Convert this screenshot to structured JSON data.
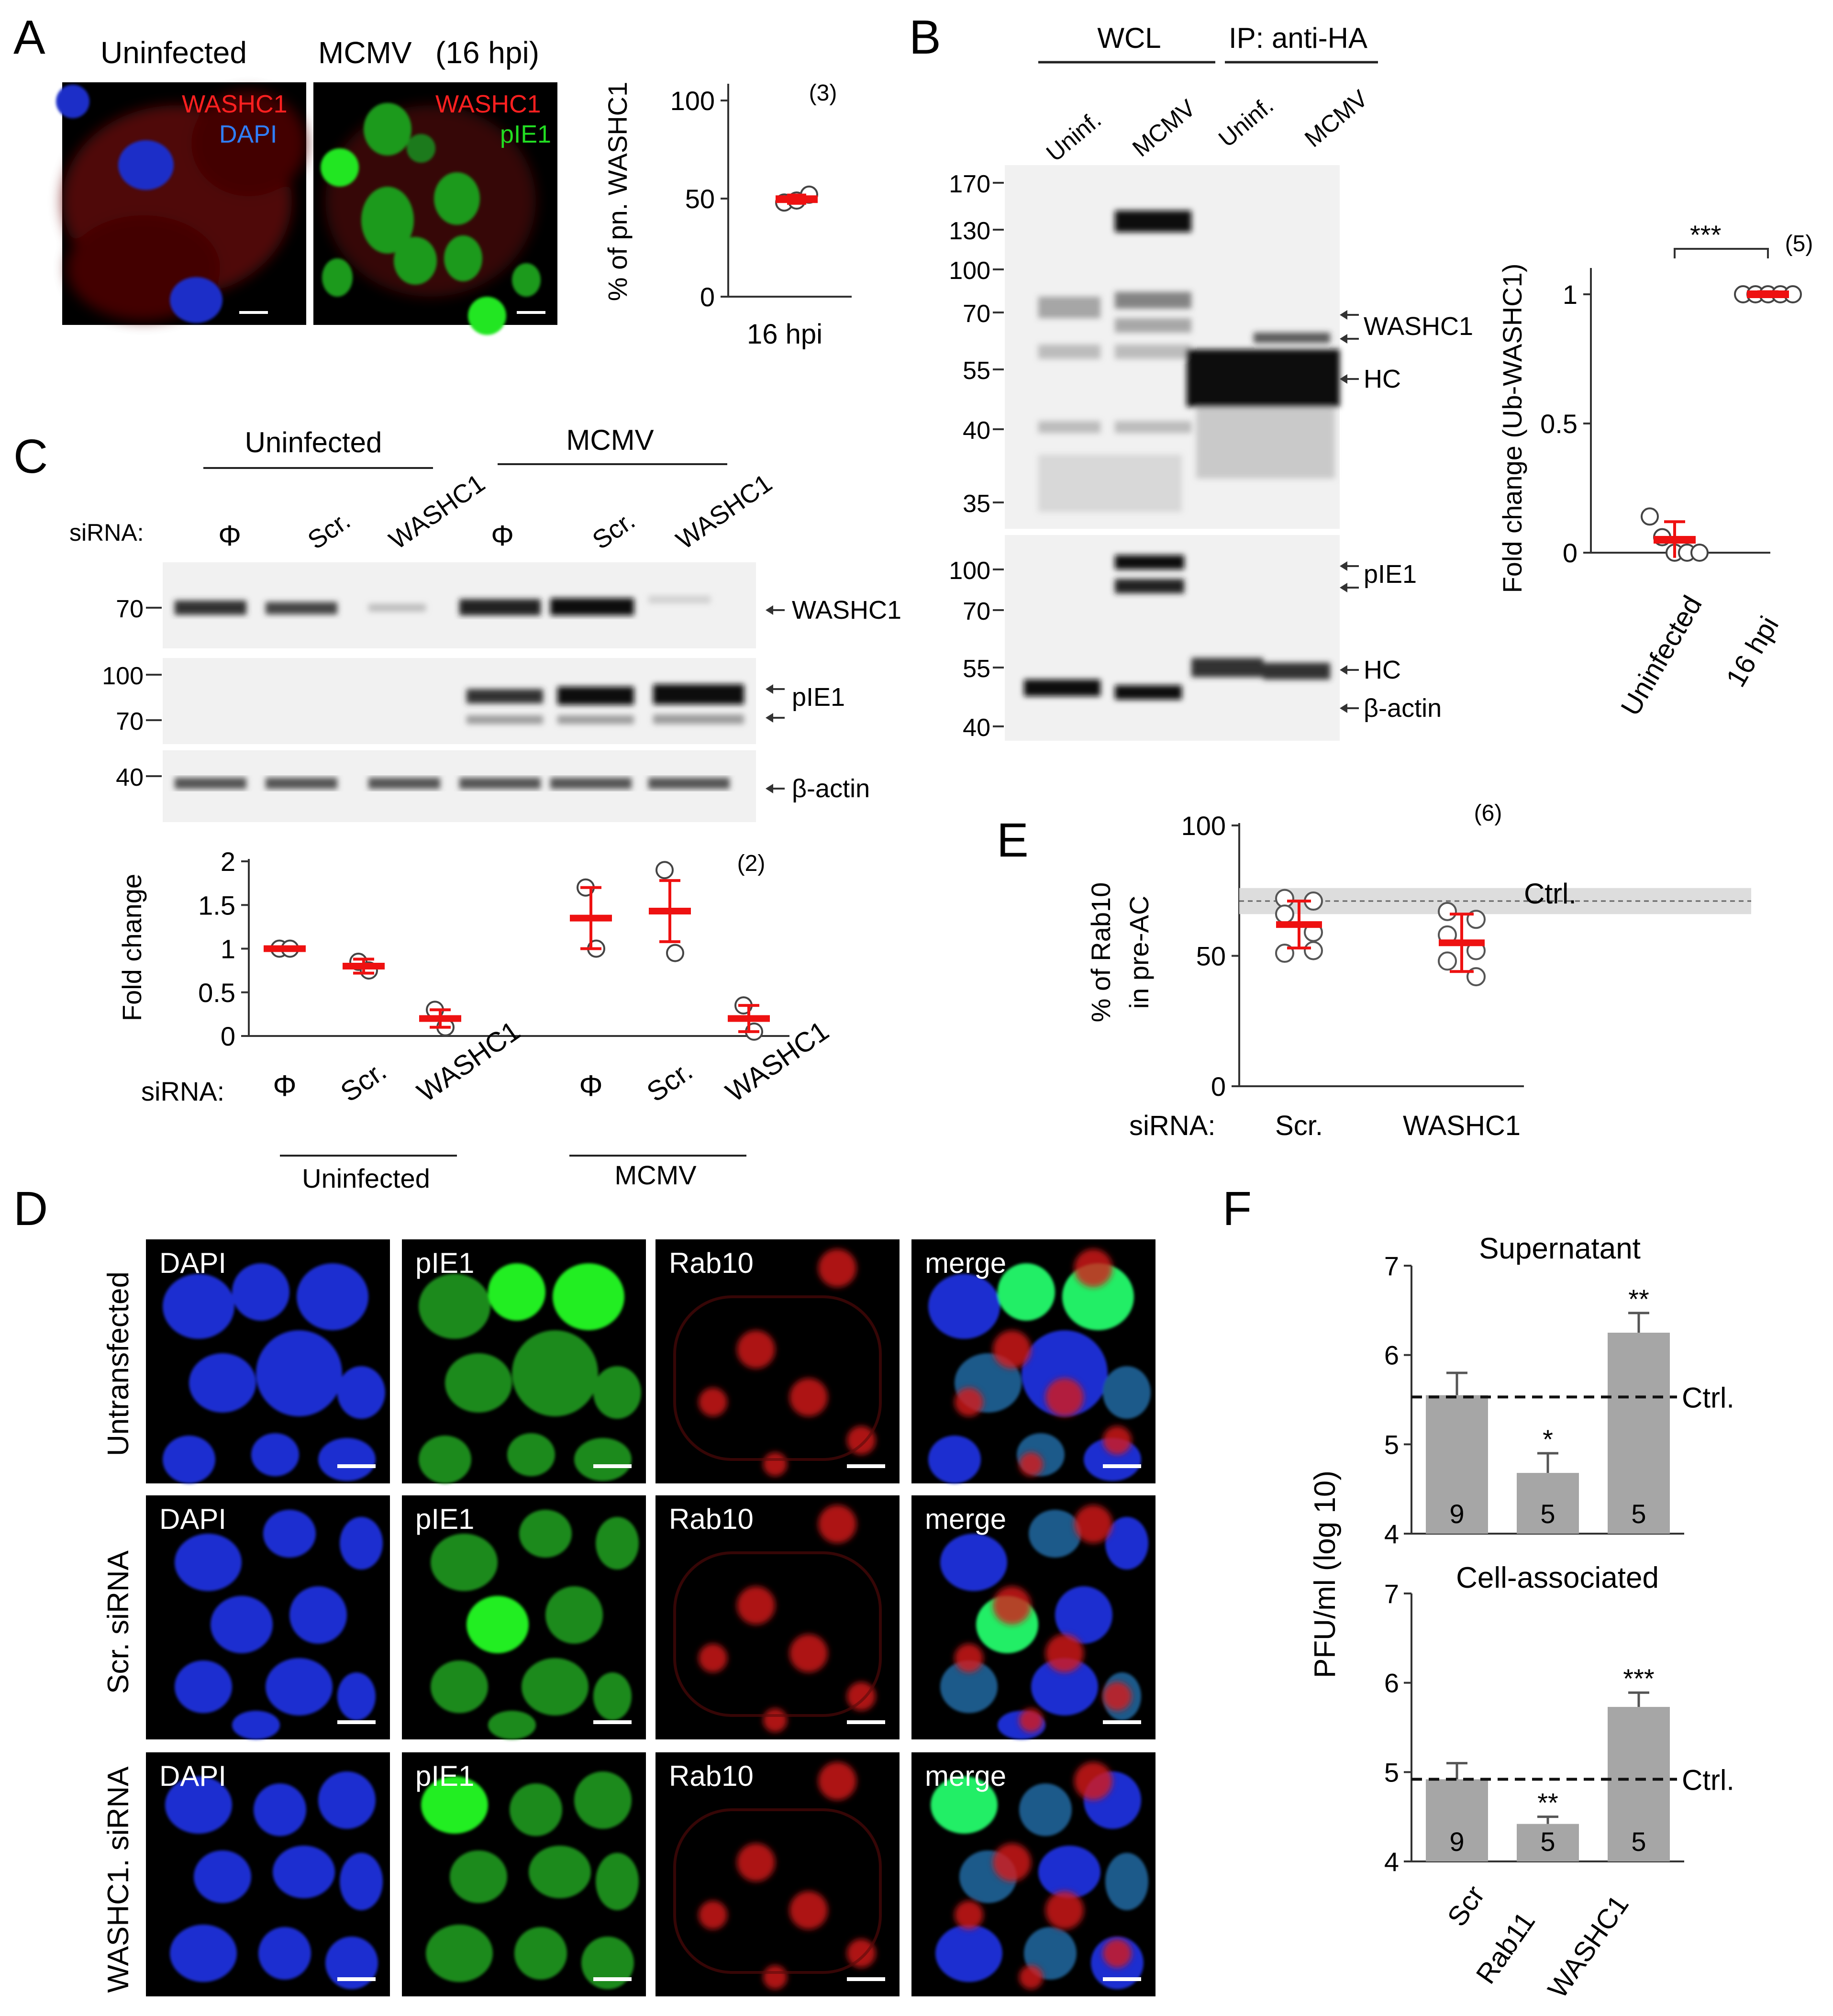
{
  "panel_letters": [
    "A",
    "B",
    "C",
    "D",
    "E",
    "F"
  ],
  "panel_a": {
    "col1_title": "Uninfected",
    "col2_title": "MCMV",
    "col2_sub": "(16 hpi)",
    "img1_labels": [
      "WASHC1",
      "DAPI"
    ],
    "img2_labels": [
      "WASHC1",
      "pIE1"
    ],
    "img1_label_colors": [
      "#ff2020",
      "#2f7fff"
    ],
    "img2_label_colors": [
      "#ff2020",
      "#22dd22"
    ],
    "chart": {
      "type": "scatter",
      "ylabel": "% of pn. WASHC1",
      "yticks": [
        "0",
        "50",
        "100"
      ],
      "ylim": [
        0,
        100
      ],
      "xtick": "16 hpi",
      "n_label": "(3)",
      "points": [
        48,
        49,
        52
      ],
      "mean": 49.7,
      "sd": 2.1
    }
  },
  "panel_b": {
    "header_groups": [
      "WCL",
      "IP: anti-HA"
    ],
    "lanes": [
      "Uninf.",
      "MCMV",
      "Uninf.",
      "MCMV"
    ],
    "top_mw": [
      "170",
      "130",
      "100",
      "70",
      "55",
      "40",
      "35"
    ],
    "bottom_mw": [
      "100",
      "70",
      "55",
      "40"
    ],
    "top_arrows": [
      "WASHC1",
      "WASHC1",
      "HC"
    ],
    "bottom_arrows": [
      "pIE1",
      "pIE1",
      "HC",
      "β-actin"
    ],
    "chart": {
      "type": "scatter",
      "ylabel": "Fold change (Ub-WASHC1)",
      "yticks": [
        "0",
        "0.5",
        "1"
      ],
      "ylim": [
        0,
        1.1
      ],
      "categories": [
        "Uninfected",
        "16 hpi"
      ],
      "n_label": "(5)",
      "sig": "***",
      "points": [
        [
          0.14,
          0.06,
          0.0,
          0.0,
          0.0
        ],
        [
          1.0,
          1.0,
          1.0,
          1.0,
          1.0
        ]
      ],
      "means": [
        0.05,
        1.0
      ],
      "sds": [
        0.07,
        0.01
      ]
    }
  },
  "panel_c": {
    "group_titles": [
      "Uninfected",
      "MCMV"
    ],
    "sirna_label": "siRNA:",
    "lanes": [
      "Φ",
      "Scr.",
      "WASHC1",
      "Φ",
      "Scr.",
      "WASHC1"
    ],
    "blot_mw": [
      [
        "70"
      ],
      [
        "100",
        "70"
      ],
      [
        "40"
      ]
    ],
    "blot_labels": [
      "WASHC1",
      "pIE1",
      "β-actin"
    ],
    "chart": {
      "type": "scatter",
      "ylabel": "Fold change",
      "yticks": [
        "0",
        "0.5",
        "1",
        "1.5",
        "2"
      ],
      "ylim": [
        0,
        2
      ],
      "categories": [
        "Φ",
        "Scr.",
        "WASHC1",
        "Φ",
        "Scr.",
        "WASHC1"
      ],
      "group_labels": [
        "Uninfected",
        "MCMV"
      ],
      "n_label": "(2)",
      "sirna_label": "siRNA:",
      "points": [
        [
          1.0,
          1.0
        ],
        [
          0.85,
          0.75
        ],
        [
          0.3,
          0.1
        ],
        [
          1.7,
          1.0
        ],
        [
          1.9,
          0.95
        ],
        [
          0.35,
          0.05
        ]
      ],
      "means": [
        1.0,
        0.8,
        0.2,
        1.35,
        1.43,
        0.2
      ],
      "sds": [
        0.02,
        0.08,
        0.1,
        0.35,
        0.35,
        0.15
      ]
    }
  },
  "panel_d": {
    "row_labels": [
      "Untransfected",
      "Scr. siRNA",
      "WASHC1. siRNA"
    ],
    "col_labels": [
      "DAPI",
      "pIE1",
      "Rab10",
      "merge"
    ]
  },
  "panel_e": {
    "chart": {
      "type": "scatter",
      "ylabel_line1": "% of Rab10",
      "ylabel_line2": "in pre-AC",
      "yticks": [
        "0",
        "50",
        "100"
      ],
      "ylim": [
        0,
        100
      ],
      "categories": [
        "Scr.",
        "WASHC1"
      ],
      "sirna_label": "siRNA:",
      "n_label": "(6)",
      "ctrl_label": "Ctrl.",
      "ctrl_mean": 71,
      "ctrl_band": [
        66,
        76
      ],
      "points": [
        [
          72,
          71,
          66,
          59,
          51,
          52
        ],
        [
          67,
          64,
          58,
          52,
          48,
          42
        ]
      ],
      "means": [
        62,
        55
      ],
      "sds": [
        9,
        11
      ]
    }
  },
  "panel_f": {
    "ylabel": "PFU/ml (log 10)",
    "categories": [
      "Scr",
      "Rab11",
      "WASHC1"
    ],
    "ctrl_label": "Ctrl.",
    "charts": [
      {
        "type": "bar",
        "title": "Supernatant",
        "yticks": [
          "4",
          "5",
          "6",
          "7"
        ],
        "ylim": [
          4,
          7
        ],
        "values": [
          5.55,
          4.68,
          6.25
        ],
        "errors": [
          0.25,
          0.22,
          0.22
        ],
        "n": [
          "9",
          "5",
          "5"
        ],
        "sig": [
          "",
          "*",
          "**"
        ],
        "ctrl": 5.53
      },
      {
        "type": "bar",
        "title": "Cell-associated",
        "yticks": [
          "4",
          "5",
          "6",
          "7"
        ],
        "ylim": [
          4,
          7
        ],
        "values": [
          4.92,
          4.42,
          5.73
        ],
        "errors": [
          0.18,
          0.08,
          0.16
        ],
        "n": [
          "9",
          "5",
          "5"
        ],
        "sig": [
          "",
          "**",
          "***"
        ],
        "ctrl": 4.92
      }
    ]
  }
}
